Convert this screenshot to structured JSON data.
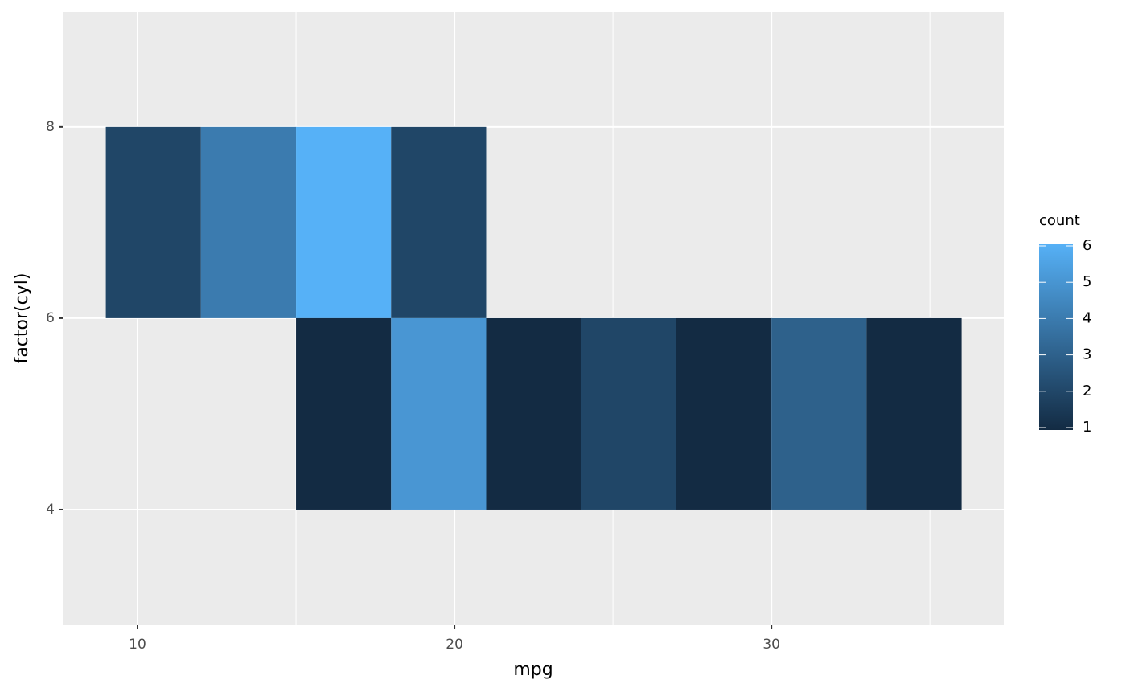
{
  "chart_data": {
    "type": "bin2d",
    "x_label": "mpg",
    "y_label": "factor(cyl)",
    "xlim": [
      7.64,
      37.33
    ],
    "xticks": [
      10,
      20,
      30
    ],
    "x_minor_ticks": [
      15,
      25,
      35
    ],
    "ylim": [
      2.79,
      9.2
    ],
    "yticks": [
      4,
      6,
      8
    ],
    "cells": [
      {
        "x": [
          9,
          12
        ],
        "y": [
          6,
          8
        ],
        "count": 2
      },
      {
        "x": [
          12,
          15
        ],
        "y": [
          6,
          8
        ],
        "count": 4
      },
      {
        "x": [
          15,
          18
        ],
        "y": [
          6,
          8
        ],
        "count": 6
      },
      {
        "x": [
          18,
          21
        ],
        "y": [
          6,
          8
        ],
        "count": 2
      },
      {
        "x": [
          15,
          18
        ],
        "y": [
          4,
          6
        ],
        "count": 1
      },
      {
        "x": [
          18,
          21
        ],
        "y": [
          4,
          6
        ],
        "count": 5
      },
      {
        "x": [
          21,
          24
        ],
        "y": [
          4,
          6
        ],
        "count": 1
      },
      {
        "x": [
          24,
          27
        ],
        "y": [
          4,
          6
        ],
        "count": 2
      },
      {
        "x": [
          27,
          30
        ],
        "y": [
          4,
          6
        ],
        "count": 1
      },
      {
        "x": [
          30,
          33
        ],
        "y": [
          4,
          6
        ],
        "count": 3
      },
      {
        "x": [
          33,
          36
        ],
        "y": [
          4,
          6
        ],
        "count": 1
      }
    ],
    "legend_title": "count",
    "colormap": [
      "#132B43",
      "#56B1F7"
    ],
    "clim": [
      1,
      6
    ],
    "cticks": [
      1,
      2,
      3,
      4,
      5,
      6
    ],
    "grid": true
  }
}
